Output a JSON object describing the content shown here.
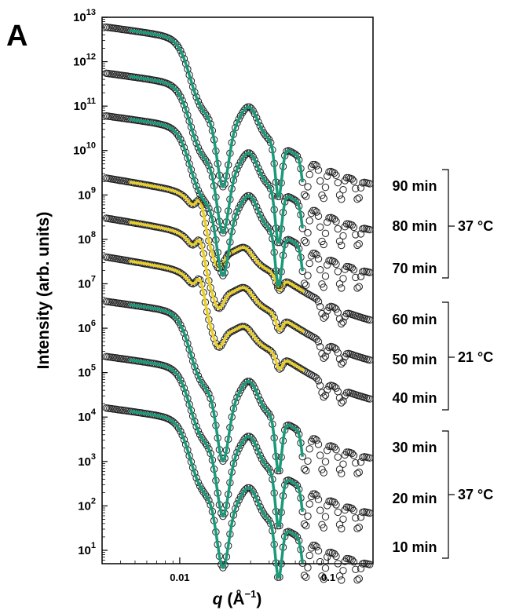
{
  "panel_letter": "A",
  "chart_data": {
    "type": "scatter",
    "title": "",
    "xlabel_italic": "q",
    "xlabel_units": " (Å",
    "xlabel_exp": "−1",
    "xlabel_close": ")",
    "ylabel": "Intensity (arb. units)",
    "x_scale": "log",
    "y_scale": "log",
    "xlim": [
      0.003,
      0.2
    ],
    "ylim": [
      5,
      10000000000000
    ],
    "x_ticks": [
      {
        "value": 0.01,
        "label": "0.01"
      },
      {
        "value": 0.1,
        "label": "0.1"
      }
    ],
    "y_ticks": [
      {
        "value": 10,
        "base": "10",
        "exp": "1"
      },
      {
        "value": 100,
        "base": "10",
        "exp": "2"
      },
      {
        "value": 1000,
        "base": "10",
        "exp": "3"
      },
      {
        "value": 10000,
        "base": "10",
        "exp": "4"
      },
      {
        "value": 100000,
        "base": "10",
        "exp": "5"
      },
      {
        "value": 1000000,
        "base": "10",
        "exp": "6"
      },
      {
        "value": 10000000,
        "base": "10",
        "exp": "7"
      },
      {
        "value": 100000000,
        "base": "10",
        "exp": "8"
      },
      {
        "value": 1000000000,
        "base": "10",
        "exp": "9"
      },
      {
        "value": 10000000000,
        "base": "10",
        "exp": "10"
      },
      {
        "value": 100000000000,
        "base": "10",
        "exp": "11"
      },
      {
        "value": 1000000000000,
        "base": "10",
        "exp": "12"
      },
      {
        "value": 10000000000000,
        "base": "10",
        "exp": "13"
      }
    ],
    "grid": false,
    "marker": "open circle",
    "colors": {
      "marker_edge": "#222222",
      "fit_green": "#1a9a7a",
      "fit_yellow": "#e8cf2a",
      "axis": "#000000"
    },
    "series": [
      {
        "label": "10 min",
        "group": 0,
        "fit": "green",
        "scale": 16000,
        "features": {
          "min1_q": 0.0195,
          "min1_I": 130,
          "max_q": 0.03,
          "min2_q": 0.046,
          "max2_q": 0.058,
          "end_I": 8
        }
      },
      {
        "label": "20 min",
        "group": 0,
        "fit": "green",
        "scale": 230000,
        "features": {
          "min1_q": 0.0195,
          "min1_I": 1500,
          "max_q": 0.03,
          "min2_q": 0.046,
          "max2_q": 0.058,
          "end_I": 130
        }
      },
      {
        "label": "30 min",
        "group": 0,
        "fit": "green",
        "scale": 4000000,
        "features": {
          "min1_q": 0.0195,
          "min1_I": 45000,
          "max_q": 0.03,
          "min2_q": 0.046,
          "max2_q": 0.058,
          "end_I": 1800
        }
      },
      {
        "label": "40 min",
        "group": 1,
        "fit": "yellow",
        "scale": 40000000,
        "features": {
          "peak_q": 0.014,
          "min1_q": 0.018,
          "max_q": 0.028,
          "end_I": 20000
        }
      },
      {
        "label": "50 min",
        "group": 1,
        "fit": "yellow",
        "scale": 300000000,
        "features": {
          "peak_q": 0.0135,
          "min1_q": 0.017,
          "max_q": 0.028,
          "end_I": 180000
        }
      },
      {
        "label": "60 min",
        "group": 1,
        "fit": "yellow",
        "scale": 2400000000,
        "features": {
          "peak_q": 0.0135,
          "min1_q": 0.017,
          "max_q": 0.028,
          "end_I": 1800000
        }
      },
      {
        "label": "70 min",
        "group": 2,
        "fit": "green",
        "scale": 60000000000,
        "features": {
          "min1_q": 0.02,
          "min1_I": 250000000,
          "max_q": 0.03,
          "min2_q": 0.046,
          "max2_q": 0.058,
          "end_I": 18000000
        }
      },
      {
        "label": "80 min",
        "group": 2,
        "fit": "green",
        "scale": 550000000000,
        "features": {
          "min1_q": 0.02,
          "min1_I": 2500000000,
          "max_q": 0.03,
          "min2_q": 0.046,
          "max2_q": 0.058,
          "end_I": 170000000
        }
      },
      {
        "label": "90 min",
        "group": 2,
        "fit": "green",
        "scale": 6000000000000,
        "features": {
          "min1_q": 0.02,
          "min1_I": 22000000000,
          "max_q": 0.03,
          "min2_q": 0.046,
          "max2_q": 0.058,
          "end_I": 2000000000
        }
      }
    ],
    "annotations": [
      {
        "labels": [
          "90 min",
          "80 min",
          "70 min"
        ],
        "temperature": "37 °C"
      },
      {
        "labels": [
          "60 min",
          "50 min",
          "40 min"
        ],
        "temperature": "21 °C"
      },
      {
        "labels": [
          "30 min",
          "20 min",
          "10 min"
        ],
        "temperature": "37 °C"
      }
    ]
  }
}
